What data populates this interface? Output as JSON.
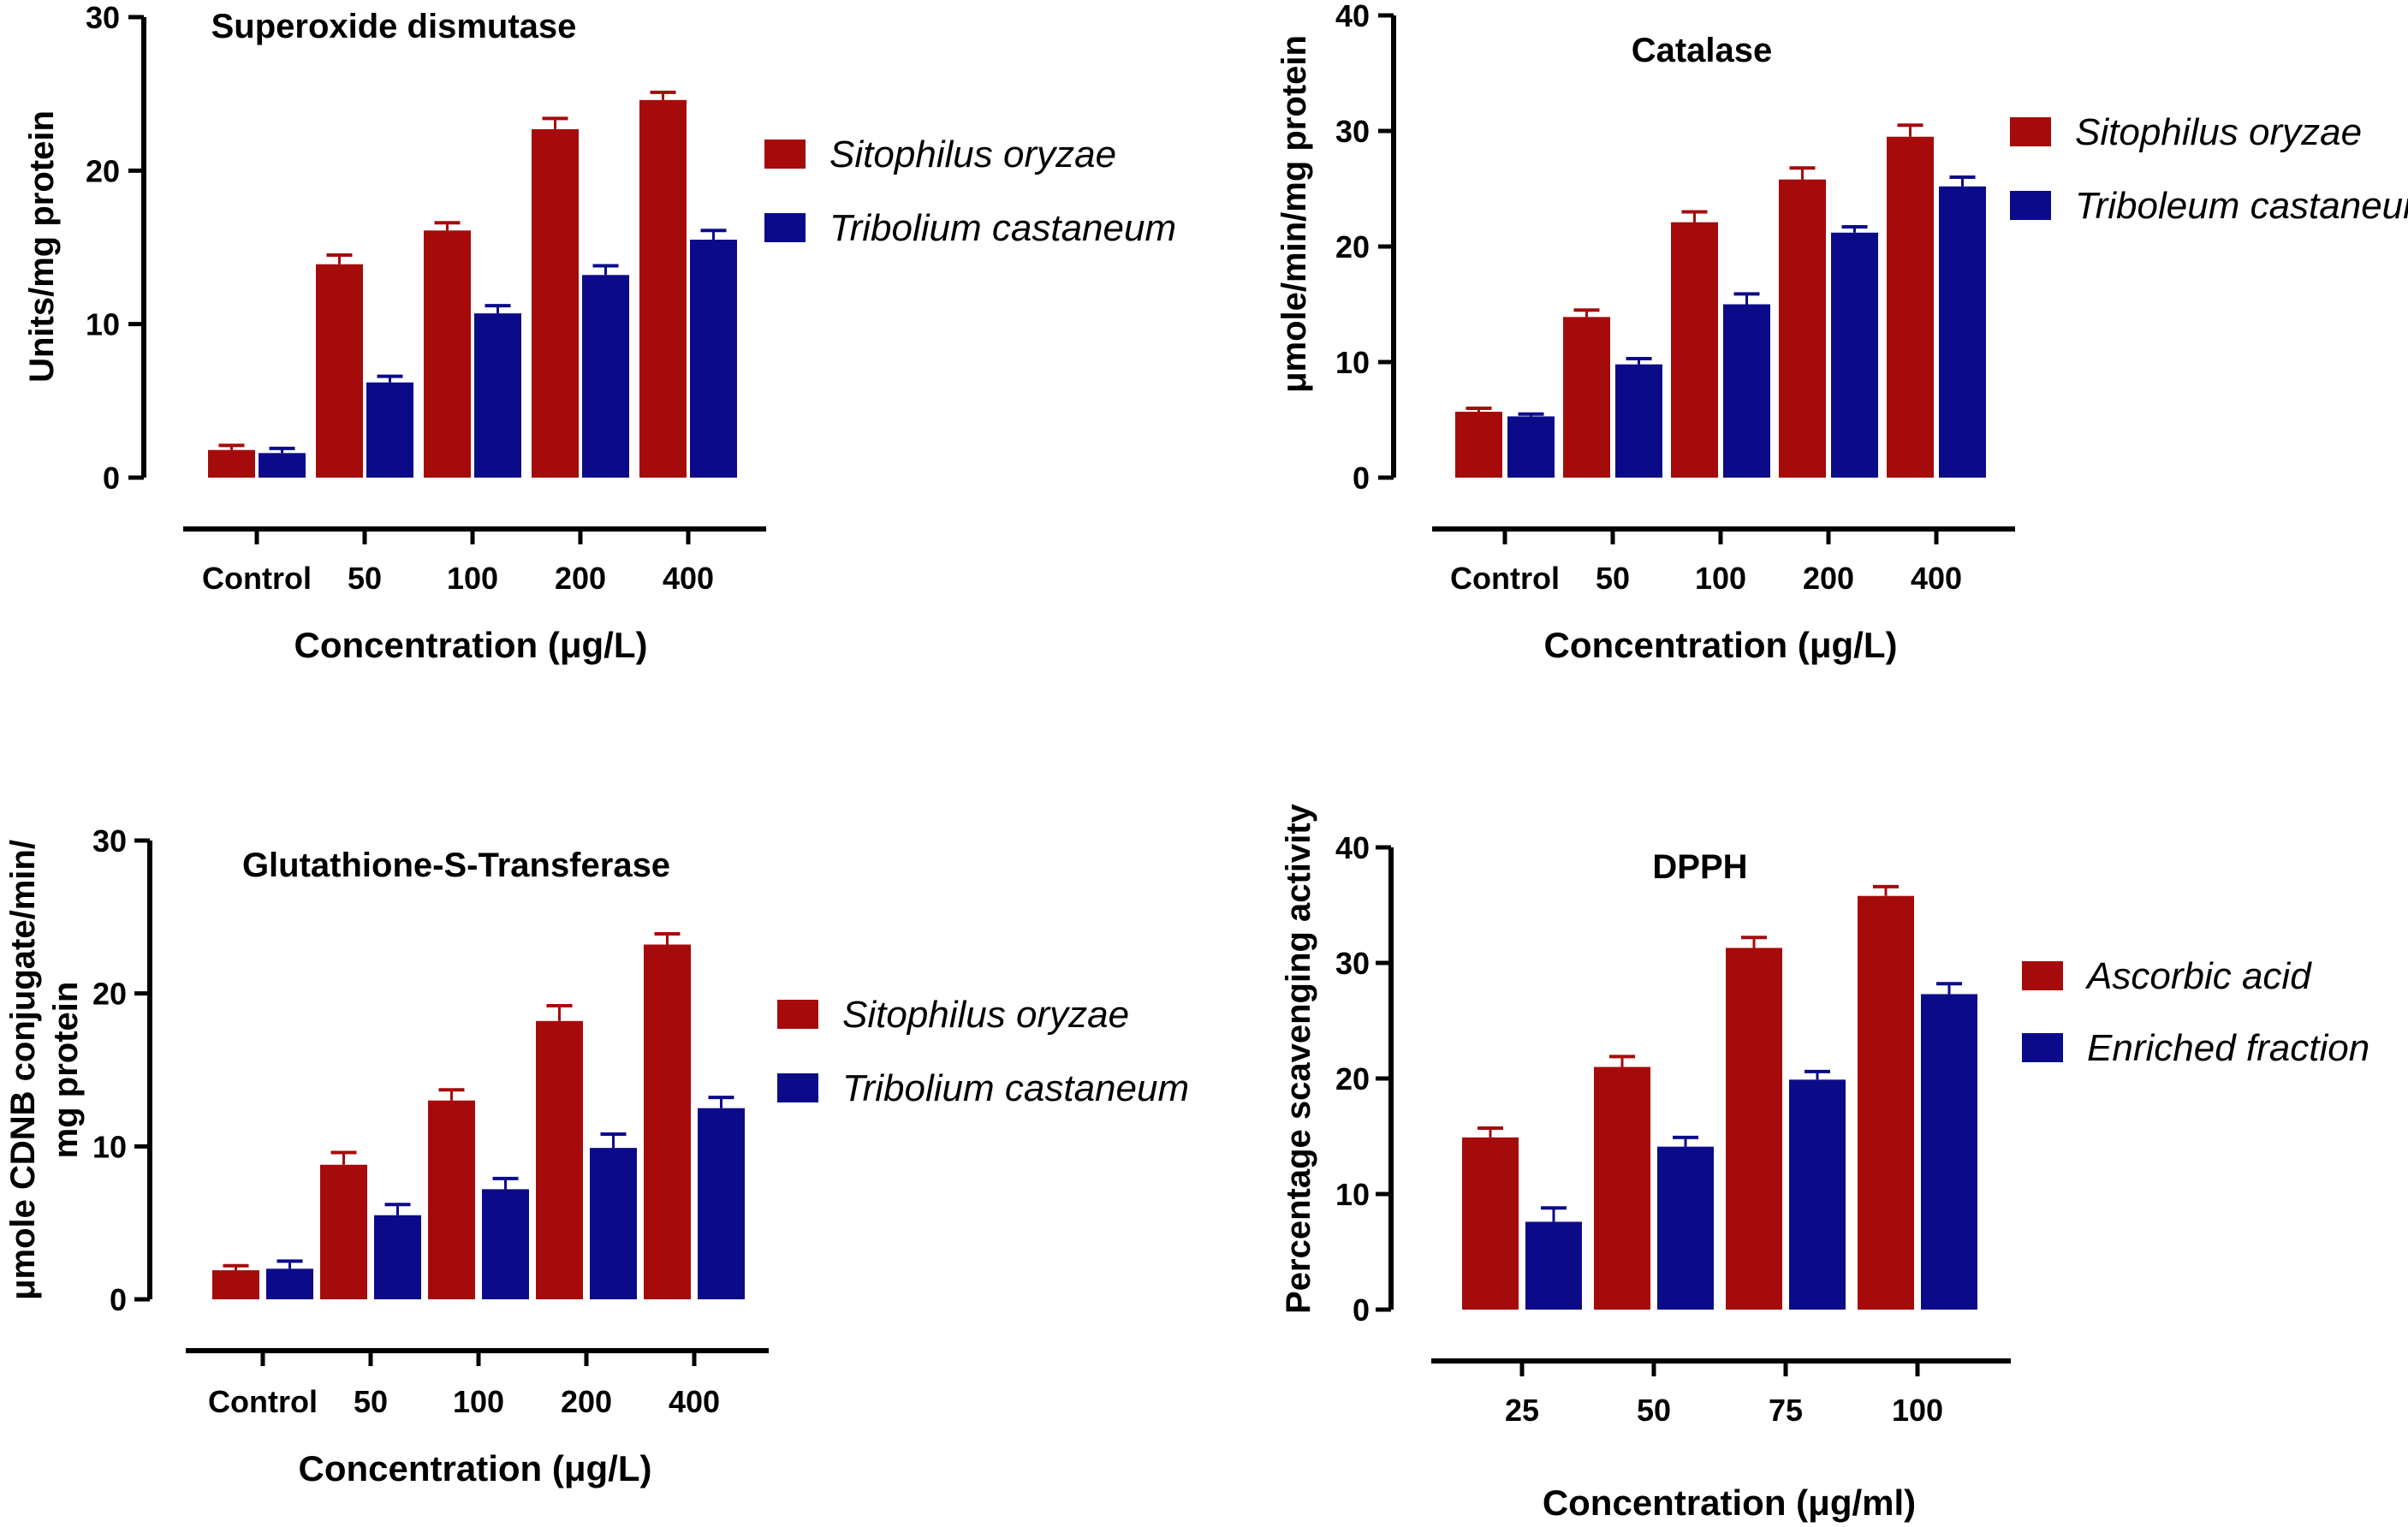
{
  "chart_data": [
    {
      "type": "bar",
      "title": "Superoxide dismutase",
      "ylabel": "Units/mg protein",
      "ylabel_lines": [
        "Units/mg protein"
      ],
      "xlabel": "Concentration (μg/L)",
      "categories": [
        "Control",
        "50",
        "100",
        "200",
        "400"
      ],
      "ylim": [
        0,
        30
      ],
      "yticks": [
        0,
        10,
        20,
        30
      ],
      "series": [
        {
          "name": "Sitophilus oryzae",
          "color": "#A50B0B",
          "values": [
            1.8,
            13.9,
            16.1,
            22.7,
            24.6
          ],
          "errors": [
            0.3,
            0.6,
            0.5,
            0.7,
            0.5
          ]
        },
        {
          "name": "Tribolium castaneum",
          "color": "#0B0B8A",
          "values": [
            1.6,
            6.2,
            10.7,
            13.2,
            15.5
          ],
          "errors": [
            0.3,
            0.4,
            0.5,
            0.6,
            0.6
          ]
        }
      ],
      "legend": "right"
    },
    {
      "type": "bar",
      "title": "Catalase",
      "ylabel": "μmole/min/mg protein",
      "ylabel_lines": [
        "μmole/min/mg protein"
      ],
      "xlabel": "Concentration (μg/L)",
      "categories": [
        "Control",
        "50",
        "100",
        "200",
        "400"
      ],
      "ylim": [
        0,
        40
      ],
      "yticks": [
        0,
        10,
        20,
        30,
        40
      ],
      "series": [
        {
          "name": "Sitophilus oryzae",
          "color": "#A50B0B",
          "values": [
            5.7,
            13.9,
            22.1,
            25.8,
            29.5
          ],
          "errors": [
            0.3,
            0.6,
            0.9,
            1.0,
            1.0
          ]
        },
        {
          "name": "Triboleum castaneum",
          "color": "#0B0B8A",
          "values": [
            5.3,
            9.8,
            15.0,
            21.2,
            25.2
          ],
          "errors": [
            0.2,
            0.5,
            0.9,
            0.5,
            0.8
          ]
        }
      ],
      "legend": "right"
    },
    {
      "type": "bar",
      "title": "Glutathione-S-Transferase",
      "ylabel": "μmole CDNB conjugate/min/ mg protein",
      "ylabel_lines": [
        "μmole CDNB conjugate/min/",
        "mg protein"
      ],
      "xlabel": "Concentration (μg/L)",
      "categories": [
        "Control",
        "50",
        "100",
        "200",
        "400"
      ],
      "ylim": [
        0,
        30
      ],
      "yticks": [
        0,
        10,
        20,
        30
      ],
      "series": [
        {
          "name": "Sitophilus oryzae",
          "color": "#A50B0B",
          "values": [
            1.9,
            8.8,
            13.0,
            18.2,
            23.2
          ],
          "errors": [
            0.3,
            0.8,
            0.7,
            1.0,
            0.7
          ]
        },
        {
          "name": "Tribolium castaneum",
          "color": "#0B0B8A",
          "values": [
            2.0,
            5.5,
            7.2,
            9.9,
            12.5
          ],
          "errors": [
            0.5,
            0.7,
            0.7,
            0.9,
            0.7
          ]
        }
      ],
      "legend": "right"
    },
    {
      "type": "bar",
      "title": "DPPH",
      "ylabel": "Percentage scavenging activity",
      "ylabel_lines": [
        "Percentage scavenging activity"
      ],
      "xlabel": "Concentration (μg/ml)",
      "categories": [
        "25",
        "50",
        "75",
        "100"
      ],
      "ylim": [
        0,
        40
      ],
      "yticks": [
        0,
        10,
        20,
        30,
        40
      ],
      "series": [
        {
          "name": "Ascorbic acid",
          "color": "#A50B0B",
          "values": [
            14.9,
            21.0,
            31.3,
            35.8
          ],
          "errors": [
            0.8,
            0.9,
            0.9,
            0.8
          ]
        },
        {
          "name": "Enriched fraction",
          "color": "#0B0B8A",
          "values": [
            7.6,
            14.1,
            19.9,
            27.3
          ],
          "errors": [
            1.2,
            0.8,
            0.7,
            0.9
          ]
        }
      ],
      "legend": "right"
    }
  ]
}
